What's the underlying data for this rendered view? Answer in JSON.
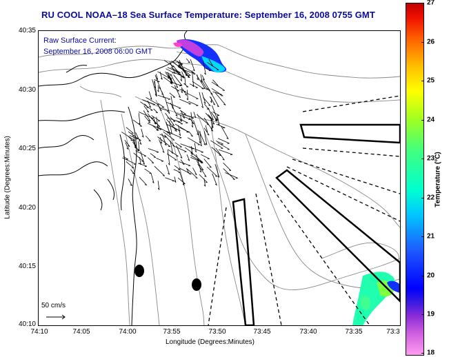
{
  "title": "RU COOL  NOAA–18  Sea Surface Temperature:  September 16, 2008 0755 GMT",
  "annotation": {
    "line1": "Raw Surface Current:",
    "line2": "September 16, 2008 06:00 GMT"
  },
  "scale": {
    "label": "50 cm/s"
  },
  "y_axis": {
    "title": "Latitude (Degrees:Minutes)",
    "ticks": [
      "40:35",
      "40:30",
      "40:25",
      "40:20",
      "40:15",
      "40:10"
    ]
  },
  "x_axis": {
    "title": "Longitude (Degrees:Minutes)",
    "ticks": [
      "74:10",
      "74:05",
      "74:00",
      "73:55",
      "73:50",
      "73:45",
      "73:40",
      "73:35",
      "73:3"
    ]
  },
  "colorbar": {
    "title": "Temperature (°C)",
    "min": 18,
    "max": 27,
    "ticks": [
      "27",
      "26",
      "25",
      "24",
      "23",
      "22",
      "21",
      "20",
      "19",
      "18"
    ]
  },
  "colors": {
    "title": "#0a0aa0",
    "coast": "#000000",
    "bathymetry": "#888888"
  }
}
